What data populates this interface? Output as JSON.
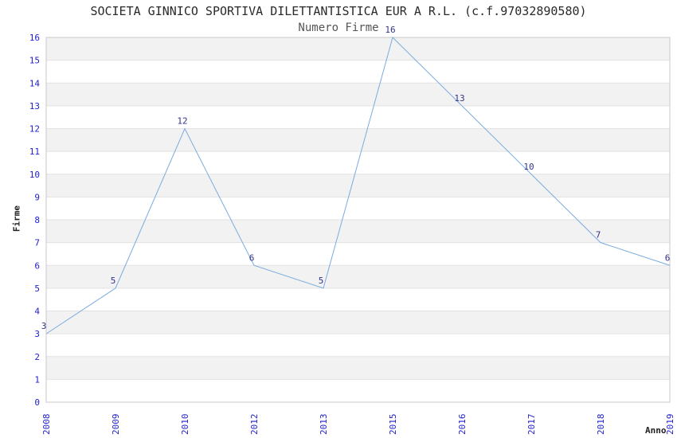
{
  "chart_data": {
    "type": "line",
    "title": "SOCIETA GINNICO SPORTIVA DILETTANTISTICA EUR A R.L. (c.f.97032890580)",
    "subtitle": "Numero Firme",
    "xlabel": "Anno",
    "ylabel": "Firme",
    "categories": [
      "2008",
      "2009",
      "2010",
      "2012",
      "2013",
      "2015",
      "2016",
      "2017",
      "2018",
      "2019"
    ],
    "values": [
      3,
      5,
      12,
      6,
      5,
      16,
      13,
      10,
      7,
      6
    ],
    "ylim": [
      0,
      16
    ],
    "ytick_step": 1,
    "grid": "horizontal-bands-no-vertical",
    "legend": "none",
    "point_markers": "none",
    "value_labels_shown": true,
    "x_tick_rotation_deg": -90,
    "colors": {
      "line": "#79ABDF",
      "tick_labels": "#2222CC",
      "value_labels": "#333388",
      "band_fill": "#F2F2F2",
      "band_alt_fill": "#FFFFFF",
      "gridline": "#E2E2E2",
      "plot_border": "#C8C8C8",
      "title_text": "#2A2A2A",
      "subtitle_text": "#555555",
      "axis_title_text": "#222222",
      "background": "#FFFFFF"
    }
  }
}
